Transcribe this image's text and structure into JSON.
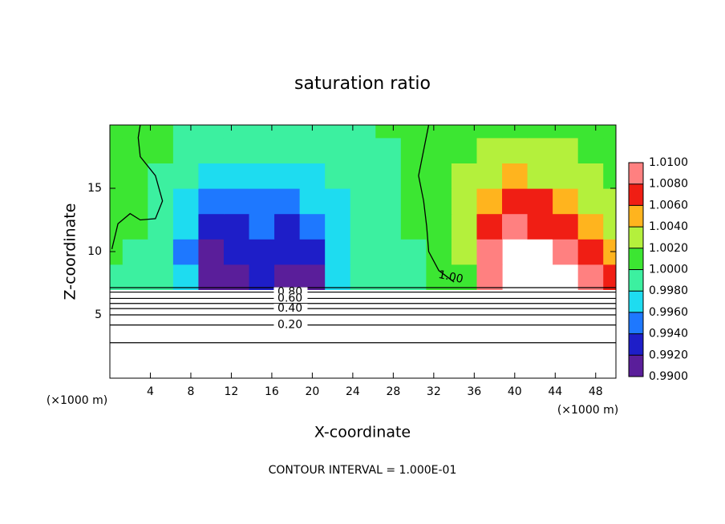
{
  "chart_data": {
    "type": "contour",
    "title": "saturation ratio",
    "xlabel": "X-coordinate",
    "ylabel": "Z-coordinate",
    "x_unit": "(×1000 m)",
    "footer": "CONTOUR INTERVAL = 1.000E-01",
    "xlim": [
      0,
      50
    ],
    "ylim": [
      0,
      20
    ],
    "xticks": [
      4,
      8,
      12,
      16,
      20,
      24,
      28,
      32,
      36,
      40,
      44,
      48
    ],
    "yticks": [
      5,
      10,
      15
    ],
    "field": {
      "x": [
        0,
        2.5,
        5,
        7.5,
        10,
        12.5,
        15,
        17.5,
        20,
        22.5,
        25,
        27.5,
        30,
        32.5,
        35,
        37.5,
        40,
        42.5,
        45,
        47.5,
        50
      ],
      "z": [
        8,
        10,
        12,
        14,
        16,
        18,
        20
      ],
      "values": [
        [
          0.9995,
          0.999,
          0.998,
          0.996,
          0.9905,
          0.991,
          0.993,
          0.991,
          0.9905,
          0.996,
          0.998,
          0.9985,
          0.999,
          1.0,
          1.001,
          1.009,
          null,
          null,
          null,
          1.008,
          1.006
        ],
        [
          1.0,
          0.9995,
          0.998,
          0.995,
          0.9915,
          0.992,
          0.9935,
          0.992,
          0.992,
          0.9965,
          0.998,
          0.9985,
          0.9995,
          1.0005,
          1.003,
          1.0085,
          null,
          null,
          1.009,
          1.007,
          1.004
        ],
        [
          1.0005,
          1.0,
          0.999,
          0.9965,
          0.993,
          0.9935,
          0.9945,
          0.9935,
          0.994,
          0.997,
          0.998,
          0.999,
          1.0,
          1.001,
          1.003,
          1.007,
          1.008,
          1.0075,
          1.0065,
          1.004,
          1.002
        ],
        [
          1.0,
          1.0,
          0.999,
          0.997,
          0.995,
          0.994,
          0.9945,
          0.995,
          0.996,
          0.9975,
          0.9985,
          0.999,
          1.0,
          1.0012,
          1.0025,
          1.0055,
          1.0065,
          1.006,
          1.005,
          1.003,
          1.002
        ],
        [
          1.0,
          1.0,
          0.9995,
          0.998,
          0.9965,
          0.996,
          0.996,
          0.997,
          0.9975,
          0.9985,
          0.999,
          0.9995,
          1.0,
          1.001,
          1.002,
          1.0035,
          1.004,
          1.0035,
          1.003,
          1.002,
          1.0015
        ],
        [
          1.0,
          1.0005,
          1.0,
          0.999,
          0.998,
          0.998,
          0.998,
          0.9985,
          0.999,
          0.9992,
          0.9995,
          0.9998,
          1.0,
          1.0008,
          1.0015,
          1.002,
          1.0025,
          1.0025,
          1.002,
          1.0015,
          1.001
        ],
        [
          1.0,
          1.0,
          1.0,
          0.9995,
          0.999,
          0.999,
          0.999,
          0.999,
          0.999,
          0.9995,
          0.9998,
          1.0,
          1.0,
          1.0005,
          1.001,
          1.0015,
          1.0015,
          1.0015,
          1.0012,
          1.001,
          1.0008
        ]
      ]
    },
    "colorbar": {
      "levels": [
        {
          "value": 0.99,
          "label": "0.9900"
        },
        {
          "value": 0.992,
          "label": "0.9920"
        },
        {
          "value": 0.994,
          "label": "0.9940"
        },
        {
          "value": 0.996,
          "label": "0.9960"
        },
        {
          "value": 0.998,
          "label": "0.9980"
        },
        {
          "value": 1.0,
          "label": "1.0000"
        },
        {
          "value": 1.002,
          "label": "1.0020"
        },
        {
          "value": 1.004,
          "label": "1.0040"
        },
        {
          "value": 1.006,
          "label": "1.0060"
        },
        {
          "value": 1.008,
          "label": "1.0080"
        },
        {
          "value": 1.01,
          "label": "1.0100"
        }
      ],
      "colors": [
        "#5a1e9a",
        "#1e1ec8",
        "#1e78ff",
        "#1edcf0",
        "#3cf0a0",
        "#3ce632",
        "#b4f03c",
        "#ffb41e",
        "#f01e14",
        "#ff8080"
      ]
    },
    "contours": [
      {
        "z": 7.15
      },
      {
        "value": 0.8,
        "label": "0.80",
        "z": 6.8
      },
      {
        "value": 0.6,
        "label": "0.60",
        "z": 6.3
      },
      {
        "z": 5.9
      },
      {
        "value": 0.4,
        "label": "0.40",
        "z": 5.5
      },
      {
        "z": 5.0
      },
      {
        "value": 0.2,
        "label": "0.20",
        "z": 4.2
      },
      {
        "z": 2.8
      }
    ],
    "lines": [
      {
        "x": [
          0.2,
          0.8,
          2,
          3,
          4.5,
          5.2,
          4.5,
          3,
          2.8,
          3
        ],
        "z": [
          10.2,
          12.2,
          13,
          12.5,
          12.6,
          14,
          16,
          17.5,
          19,
          20
        ]
      },
      {
        "value": 1.0,
        "label": "1.00",
        "x": [
          34,
          32.5,
          31.5,
          31.3,
          31,
          30.5,
          31,
          31.5
        ],
        "z": [
          7.6,
          8.5,
          10,
          12,
          14,
          16,
          18,
          20
        ]
      }
    ]
  }
}
